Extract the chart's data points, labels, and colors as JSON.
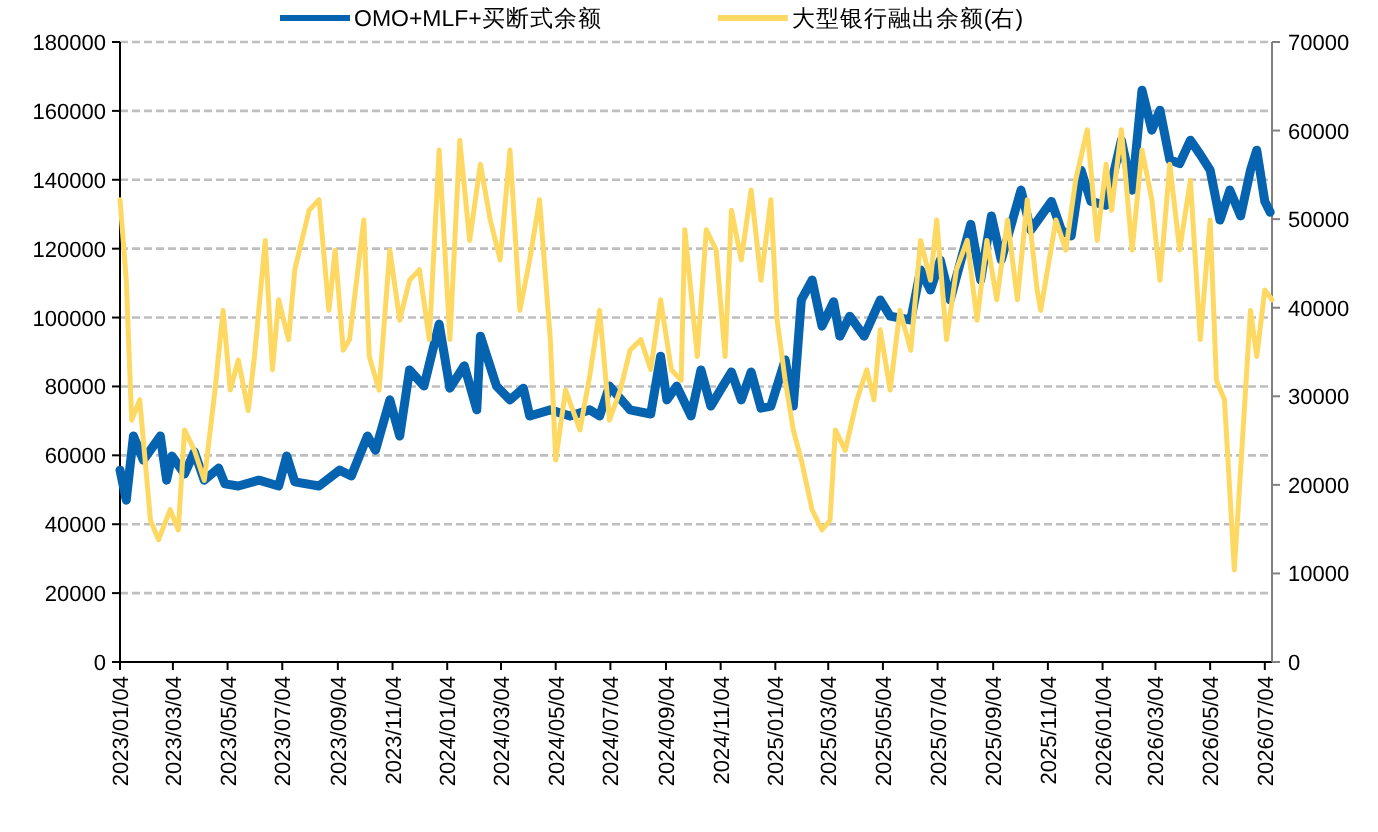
{
  "chart_data": {
    "type": "line",
    "xlim": [
      "2023-01-04",
      "2026-07-12"
    ],
    "xticks": [
      {
        "value": "2023-01-04",
        "label": "2023/01/04"
      },
      {
        "value": "2023-03-04",
        "label": "2023/03/04"
      },
      {
        "value": "2023-05-04",
        "label": "2023/05/04"
      },
      {
        "value": "2023-07-04",
        "label": "2023/07/04"
      },
      {
        "value": "2023-09-04",
        "label": "2023/09/04"
      },
      {
        "value": "2023-11-04",
        "label": "2023/11/04"
      },
      {
        "value": "2024-01-04",
        "label": "2024/01/04"
      },
      {
        "value": "2024-03-04",
        "label": "2024/03/04"
      },
      {
        "value": "2024-05-04",
        "label": "2024/05/04"
      },
      {
        "value": "2024-07-04",
        "label": "2024/07/04"
      },
      {
        "value": "2024-09-04",
        "label": "2024/09/04"
      },
      {
        "value": "2024-11-04",
        "label": "2024/11/04"
      },
      {
        "value": "2025-01-04",
        "label": "2025/01/04"
      },
      {
        "value": "2025-03-04",
        "label": "2025/03/04"
      },
      {
        "value": "2025-05-04",
        "label": "2025/05/04"
      },
      {
        "value": "2025-07-04",
        "label": "2025/07/04"
      },
      {
        "value": "2025-09-04",
        "label": "2025/09/04"
      },
      {
        "value": "2025-11-04",
        "label": "2025/11/04"
      },
      {
        "value": "2026-01-04",
        "label": "2026/01/04"
      },
      {
        "value": "2026-03-04",
        "label": "2026/03/04"
      },
      {
        "value": "2026-05-04",
        "label": "2026/05/04"
      },
      {
        "value": "2026-07-04",
        "label": "2026/07/04"
      }
    ],
    "ylim": [
      0,
      180000
    ],
    "yticks": [
      0,
      20000,
      40000,
      60000,
      80000,
      100000,
      120000,
      140000,
      160000,
      180000
    ],
    "y2lim": [
      0,
      70000
    ],
    "y2ticks": [
      0,
      10000,
      20000,
      30000,
      40000,
      50000,
      60000,
      70000
    ],
    "grid": "y",
    "legend": "top",
    "marker": "none",
    "line_style": "solid",
    "series": [
      {
        "name": "OMO+MLF+买断式余额",
        "color": "#0563b0",
        "x": [
          "2023-01-04",
          "2023-01-11",
          "2023-01-19",
          "2023-01-30",
          "2023-02-18",
          "2023-02-25",
          "2023-03-03",
          "2023-03-17",
          "2023-03-28",
          "2023-04-08",
          "2023-04-24",
          "2023-05-01",
          "2023-05-16",
          "2023-06-08",
          "2023-06-30",
          "2023-07-09",
          "2023-07-18",
          "2023-08-14",
          "2023-09-06",
          "2023-09-19",
          "2023-10-07",
          "2023-10-16",
          "2023-11-01",
          "2023-11-12",
          "2023-11-23",
          "2023-12-09",
          "2023-12-26",
          "2024-01-07",
          "2024-01-23",
          "2024-02-06",
          "2024-02-10",
          "2024-02-28",
          "2024-03-14",
          "2024-03-29",
          "2024-04-05",
          "2024-04-28",
          "2024-05-20",
          "2024-06-11",
          "2024-06-22",
          "2024-07-03",
          "2024-07-26",
          "2024-08-18",
          "2024-08-29",
          "2024-09-05",
          "2024-09-16",
          "2024-10-02",
          "2024-10-13",
          "2024-10-24",
          "2024-11-05",
          "2024-11-16",
          "2024-11-27",
          "2024-12-08",
          "2024-12-19",
          "2024-12-30",
          "2025-01-15",
          "2025-01-24",
          "2025-02-02",
          "2025-02-14",
          "2025-02-25",
          "2025-03-10",
          "2025-03-17",
          "2025-03-28",
          "2025-04-13",
          "2025-05-01",
          "2025-05-12",
          "2025-06-04",
          "2025-06-15",
          "2025-06-26",
          "2025-07-07",
          "2025-07-18",
          "2025-08-10",
          "2025-08-21",
          "2025-09-02",
          "2025-09-13",
          "2025-10-05",
          "2025-10-16",
          "2025-11-08",
          "2025-11-19",
          "2025-11-30",
          "2025-12-11",
          "2025-12-22",
          "2026-01-08",
          "2026-01-25",
          "2026-02-06",
          "2026-02-17",
          "2026-02-28",
          "2026-03-09",
          "2026-03-20",
          "2026-03-31",
          "2026-04-12",
          "2026-04-23",
          "2026-05-04",
          "2026-05-15",
          "2026-05-26",
          "2026-06-07",
          "2026-06-18",
          "2026-06-25",
          "2026-07-04",
          "2026-07-10"
        ],
        "values": [
          55700,
          47000,
          65600,
          58600,
          65600,
          52800,
          59800,
          54600,
          61000,
          52800,
          56300,
          51700,
          51100,
          52800,
          51100,
          59800,
          52300,
          51100,
          55700,
          54000,
          65600,
          61500,
          76100,
          65600,
          84800,
          80100,
          98100,
          79500,
          86000,
          73200,
          94600,
          80100,
          76100,
          79500,
          71400,
          73200,
          71400,
          73200,
          71400,
          80100,
          73200,
          72000,
          88800,
          76100,
          80100,
          71400,
          84800,
          74300,
          79500,
          84200,
          76100,
          84200,
          73700,
          74300,
          87700,
          74300,
          105100,
          110900,
          97500,
          104600,
          94600,
          100400,
          94600,
          105100,
          100400,
          99300,
          113800,
          108000,
          116700,
          105100,
          127100,
          110900,
          129500,
          116700,
          137000,
          125400,
          133700,
          125400,
          123700,
          142800,
          133700,
          132600,
          151500,
          137000,
          166000,
          154400,
          160200,
          145800,
          144700,
          151500,
          147300,
          142800,
          128300,
          137000,
          129500,
          142800,
          148600,
          133700,
          130600
        ]
      },
      {
        "name": "大型银行融出余额(右)",
        "color": "#fdd964",
        "axis": "y2",
        "x": [
          "2023-01-04",
          "2023-01-11",
          "2023-01-17",
          "2023-01-26",
          "2023-02-07",
          "2023-02-16",
          "2023-03-01",
          "2023-03-10",
          "2023-03-17",
          "2023-03-28",
          "2023-04-08",
          "2023-04-20",
          "2023-04-29",
          "2023-05-07",
          "2023-05-16",
          "2023-05-27",
          "2023-06-03",
          "2023-06-15",
          "2023-06-23",
          "2023-06-30",
          "2023-07-11",
          "2023-07-18",
          "2023-08-03",
          "2023-08-14",
          "2023-08-25",
          "2023-09-01",
          "2023-09-10",
          "2023-09-17",
          "2023-10-03",
          "2023-10-09",
          "2023-10-20",
          "2023-11-01",
          "2023-11-12",
          "2023-11-23",
          "2023-12-04",
          "2023-12-15",
          "2023-12-26",
          "2024-01-07",
          "2024-01-18",
          "2024-01-29",
          "2024-02-10",
          "2024-02-21",
          "2024-03-03",
          "2024-03-14",
          "2024-03-25",
          "2024-04-05",
          "2024-04-16",
          "2024-04-28",
          "2024-05-04",
          "2024-05-15",
          "2024-05-31",
          "2024-06-11",
          "2024-06-22",
          "2024-07-03",
          "2024-07-15",
          "2024-07-26",
          "2024-08-07",
          "2024-08-18",
          "2024-08-29",
          "2024-09-10",
          "2024-09-21",
          "2024-09-25",
          "2024-10-09",
          "2024-10-19",
          "2024-10-30",
          "2024-11-09",
          "2024-11-16",
          "2024-11-27",
          "2024-12-08",
          "2024-12-19",
          "2024-12-30",
          "2025-01-06",
          "2025-01-15",
          "2025-01-24",
          "2025-02-02",
          "2025-02-14",
          "2025-02-25",
          "2025-03-06",
          "2025-03-12",
          "2025-03-23",
          "2025-04-05",
          "2025-04-16",
          "2025-04-24",
          "2025-05-01",
          "2025-05-12",
          "2025-05-23",
          "2025-06-04",
          "2025-06-15",
          "2025-06-26",
          "2025-07-03",
          "2025-07-14",
          "2025-07-25",
          "2025-08-06",
          "2025-08-17",
          "2025-08-28",
          "2025-09-08",
          "2025-09-20",
          "2025-10-01",
          "2025-10-12",
          "2025-10-23",
          "2025-10-27",
          "2025-11-13",
          "2025-11-24",
          "2025-12-05",
          "2025-12-18",
          "2025-12-29",
          "2026-01-08",
          "2026-01-14",
          "2026-01-25",
          "2026-02-06",
          "2026-02-17",
          "2026-02-28",
          "2026-03-09",
          "2026-03-20",
          "2026-03-31",
          "2026-04-12",
          "2026-04-23",
          "2026-05-04",
          "2026-05-11",
          "2026-05-20",
          "2026-05-31",
          "2026-06-07",
          "2026-06-18",
          "2026-06-25",
          "2026-07-04",
          "2026-07-12"
        ],
        "values": [
          52200,
          43100,
          27300,
          29600,
          16000,
          13800,
          17200,
          14900,
          26200,
          23900,
          20500,
          30700,
          39700,
          30700,
          34100,
          28400,
          34500,
          47600,
          33000,
          40900,
          36400,
          44300,
          51000,
          52200,
          39700,
          46500,
          35200,
          36400,
          49900,
          34500,
          30700,
          46500,
          38600,
          43100,
          44300,
          36400,
          57800,
          36400,
          58900,
          47600,
          56200,
          49900,
          45400,
          57800,
          39700,
          45400,
          52200,
          36400,
          22800,
          30700,
          26200,
          32300,
          39700,
          27300,
          30700,
          35200,
          36400,
          33000,
          40900,
          33000,
          31800,
          48800,
          34500,
          48800,
          46500,
          34500,
          51000,
          45400,
          53300,
          43100,
          52200,
          38600,
          31800,
          26200,
          22800,
          17200,
          14900,
          16000,
          26200,
          23900,
          29600,
          33000,
          29600,
          37500,
          30700,
          39700,
          35200,
          47600,
          43100,
          49900,
          36400,
          44300,
          47600,
          38600,
          47600,
          40900,
          49900,
          40900,
          52200,
          42000,
          39700,
          49900,
          46500,
          54400,
          60100,
          47600,
          56200,
          51000,
          60100,
          46500,
          57800,
          52200,
          43100,
          56200,
          46500,
          54400,
          36400,
          49900,
          31800,
          29600,
          10400,
          21700,
          39700,
          34500,
          42000,
          40900
        ]
      }
    ]
  }
}
